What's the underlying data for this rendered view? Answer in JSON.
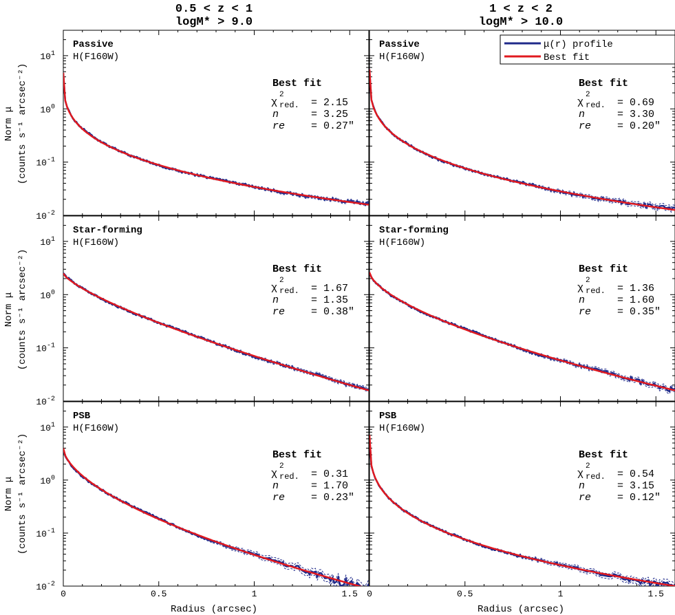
{
  "figure": {
    "columns": [
      {
        "title_line1": "0.5 < z < 1",
        "title_line2": "logM* > 9.0"
      },
      {
        "title_line1": "1 < z < 2",
        "title_line2": "logM* > 10.0"
      }
    ],
    "ylabel_line1": "Norm μ",
    "ylabel_line2": "(counts s⁻¹ arcsec⁻²)",
    "xlabel": "Radius (arcsec)",
    "filter_label": "H(F160W)",
    "fit_header": "Best fit",
    "chi_symbol": "χ",
    "chi_sup": "2",
    "chi_sub": "red.",
    "n_symbol": "n",
    "re_symbol": "re",
    "legend": {
      "profile": "μ(r) profile",
      "fit": "Best fit"
    },
    "colors": {
      "profile": "#1f2a8a",
      "fit": "#e0191f",
      "frame": "#000000"
    }
  },
  "chart_data": [
    {
      "type": "line",
      "panel": "0.5<z<1 Passive",
      "label": "Passive",
      "chi2_red": "= 2.15",
      "n": "= 3.25",
      "re": "= 0.27\"",
      "n_val": 3.25,
      "log_mu0": 0.68,
      "log_mu_end": -1.8,
      "xlim": [
        0,
        1.6
      ],
      "ylim": [
        0.01,
        30
      ],
      "xscale": "linear",
      "yscale": "log",
      "noise": 0.2
    },
    {
      "type": "line",
      "panel": "1<z<2 Passive",
      "label": "Passive",
      "chi2_red": "= 0.69",
      "n": "= 3.30",
      "re": "= 0.20\"",
      "n_val": 3.3,
      "log_mu0": 0.74,
      "log_mu_end": -1.9,
      "xlim": [
        0,
        1.6
      ],
      "ylim": [
        0.01,
        30
      ],
      "xscale": "linear",
      "yscale": "log",
      "noise": 0.6
    },
    {
      "type": "line",
      "panel": "0.5<z<1 Star-forming",
      "label": "Star-forming",
      "chi2_red": "= 1.67",
      "n": "= 1.35",
      "re": "= 0.38\"",
      "n_val": 1.35,
      "log_mu0": 0.4,
      "log_mu_end": -1.8,
      "xlim": [
        0,
        1.6
      ],
      "ylim": [
        0.01,
        30
      ],
      "xscale": "linear",
      "yscale": "log",
      "noise": 0.3
    },
    {
      "type": "line",
      "panel": "1<z<2 Star-forming",
      "label": "Star-forming",
      "chi2_red": "= 1.36",
      "n": "= 1.60",
      "re": "= 0.35\"",
      "n_val": 1.6,
      "log_mu0": 0.42,
      "log_mu_end": -1.8,
      "xlim": [
        0,
        1.6
      ],
      "ylim": [
        0.01,
        30
      ],
      "xscale": "linear",
      "yscale": "log",
      "noise": 0.6
    },
    {
      "type": "line",
      "panel": "0.5<z<1 PSB",
      "label": "PSB",
      "chi2_red": "= 0.31",
      "n": "= 1.70",
      "re": "= 0.23\"",
      "n_val": 1.7,
      "log_mu0": 0.6,
      "log_mu_end": -2.05,
      "xlim": [
        0,
        1.6
      ],
      "ylim": [
        0.01,
        30
      ],
      "xscale": "linear",
      "yscale": "log",
      "noise": 1.4
    },
    {
      "type": "line",
      "panel": "1<z<2 PSB",
      "label": "PSB",
      "chi2_red": "= 0.54",
      "n": "= 3.15",
      "re": "= 0.12\"",
      "n_val": 3.15,
      "log_mu0": 0.85,
      "log_mu_end": -2.0,
      "xlim": [
        0,
        1.6
      ],
      "ylim": [
        0.01,
        30
      ],
      "xscale": "linear",
      "yscale": "log",
      "noise": 1.0
    }
  ],
  "axes": {
    "xticks": [
      0,
      0.5,
      1,
      1.5
    ],
    "xtick_labels": [
      "0",
      "0.5",
      "1",
      "1.5"
    ],
    "ytick_bases": [
      "10",
      "10",
      "10",
      "10"
    ],
    "ytick_exps": [
      "1",
      "0",
      "-1",
      "-2"
    ]
  }
}
